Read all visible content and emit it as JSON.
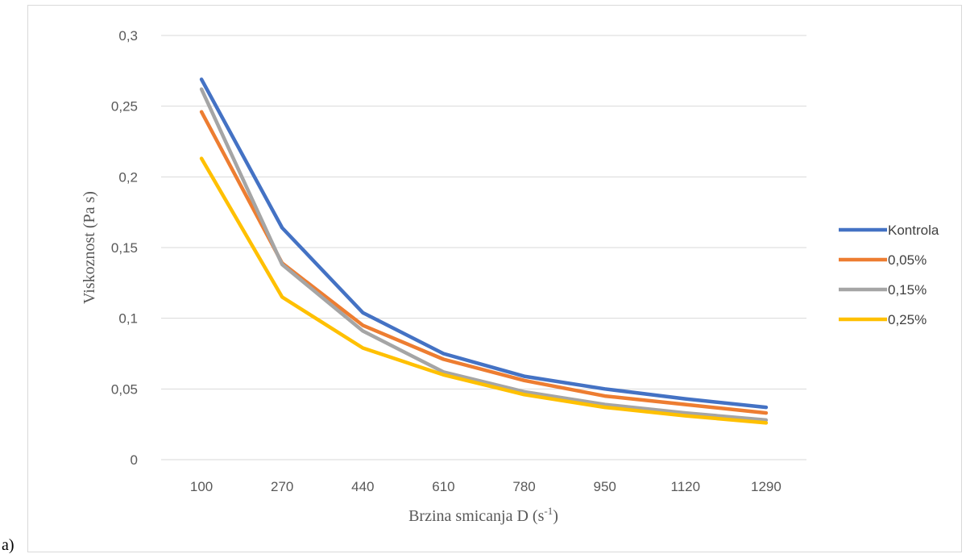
{
  "panel_label": "a)",
  "chart_data": {
    "type": "line",
    "title": "",
    "xlabel": "Brzina smicanja D (s",
    "xlabel_sup": "-1",
    "xlabel_end": ")",
    "ylabel": "Viskoznost (Pa s)",
    "categories": [
      "100",
      "270",
      "440",
      "610",
      "780",
      "950",
      "1120",
      "1290"
    ],
    "ylim": [
      0,
      0.3
    ],
    "yticks": [
      "0",
      "0,05",
      "0,1",
      "0,15",
      "0,2",
      "0,25",
      "0,3"
    ],
    "grid": true,
    "legend_position": "right",
    "series": [
      {
        "name": "Kontrola",
        "color": "#4472C4",
        "values": [
          0.269,
          0.164,
          0.104,
          0.075,
          0.059,
          0.05,
          0.043,
          0.037
        ]
      },
      {
        "name": "0,05%",
        "color": "#ED7D31",
        "values": [
          0.246,
          0.139,
          0.095,
          0.071,
          0.056,
          0.045,
          0.039,
          0.033
        ]
      },
      {
        "name": "0,15%",
        "color": "#A5A5A5",
        "values": [
          0.262,
          0.138,
          0.091,
          0.062,
          0.048,
          0.039,
          0.033,
          0.028
        ]
      },
      {
        "name": "0,25%",
        "color": "#FFC000",
        "values": [
          0.213,
          0.115,
          0.079,
          0.06,
          0.046,
          0.037,
          0.031,
          0.026
        ]
      }
    ]
  }
}
